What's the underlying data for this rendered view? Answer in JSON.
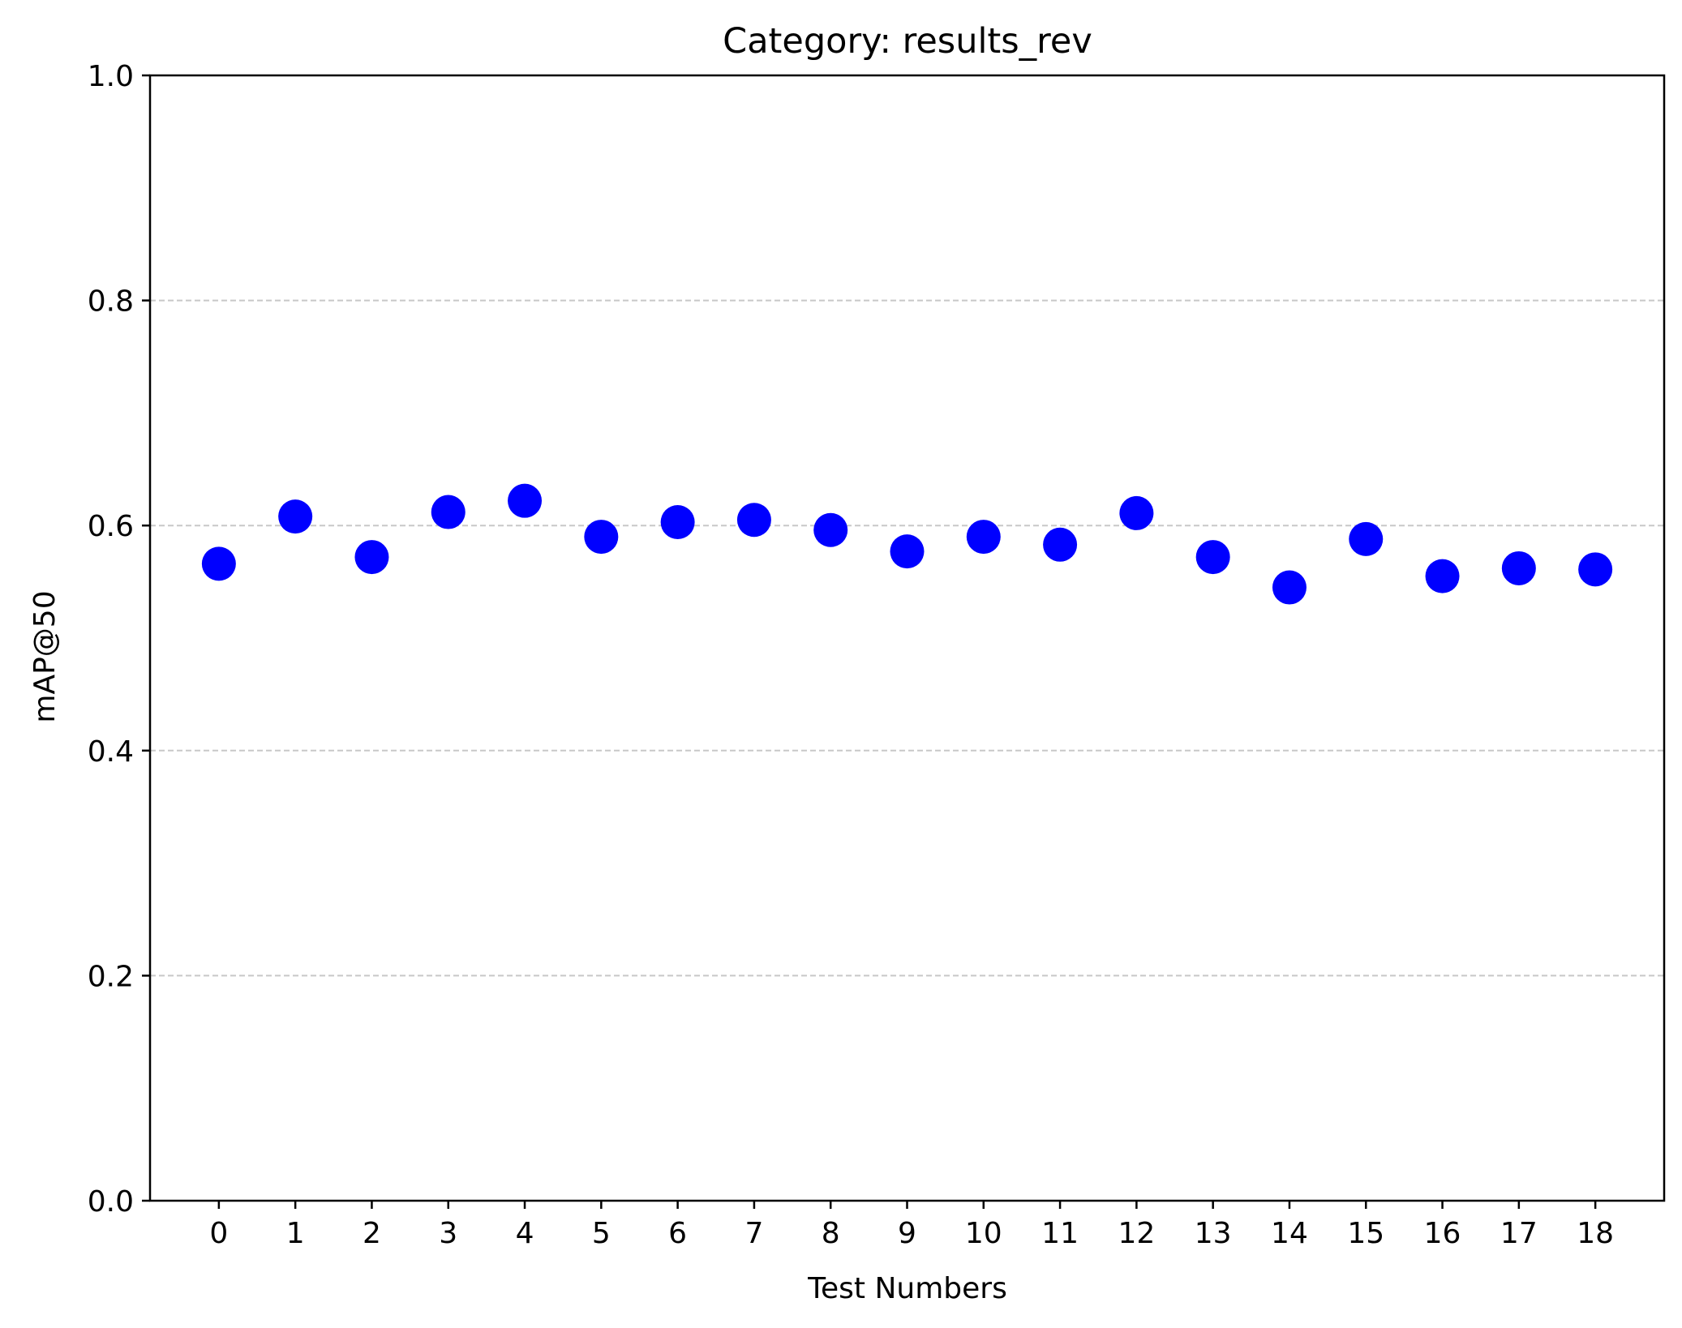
{
  "chart_data": {
    "type": "scatter",
    "title": "Category: results_rev",
    "xlabel": "Test Numbers",
    "ylabel": "mAP@50",
    "x": [
      0,
      1,
      2,
      3,
      4,
      5,
      6,
      7,
      8,
      9,
      10,
      11,
      12,
      13,
      14,
      15,
      16,
      17,
      18
    ],
    "xticks": [
      "0",
      "1",
      "2",
      "3",
      "4",
      "5",
      "6",
      "7",
      "8",
      "9",
      "10",
      "11",
      "12",
      "13",
      "14",
      "15",
      "16",
      "17",
      "18"
    ],
    "series": [
      {
        "values": [
          0.566,
          0.608,
          0.572,
          0.612,
          0.622,
          0.59,
          0.603,
          0.605,
          0.596,
          0.577,
          0.59,
          0.583,
          0.611,
          0.572,
          0.545,
          0.588,
          0.555,
          0.562,
          0.561
        ],
        "color": "#0000ff"
      }
    ],
    "xlim": [
      -0.9,
      18.9
    ],
    "ylim": [
      0.0,
      1.0
    ],
    "yticks": [
      "0.0",
      "0.2",
      "0.4",
      "0.6",
      "0.8",
      "1.0"
    ],
    "grid": "horizontal dashed",
    "grid_color": "#c8c8c8",
    "legend": "none"
  }
}
